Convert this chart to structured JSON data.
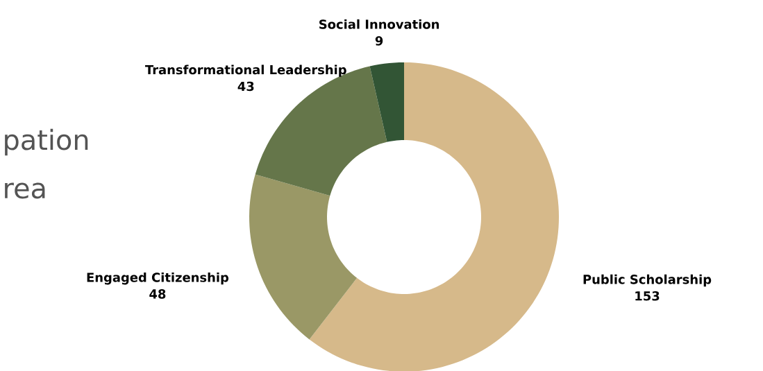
{
  "chart_data": {
    "type": "donut",
    "categories": [
      "Public Scholarship",
      "Engaged Citizenship",
      "Transformational Leadership",
      "Social Innovation"
    ],
    "values": [
      153,
      48,
      43,
      9
    ],
    "colors": [
      "#d6b98a",
      "#9a9866",
      "#65764a",
      "#325535"
    ],
    "data_labels": true,
    "annotations": [
      "pation",
      "rea"
    ]
  }
}
